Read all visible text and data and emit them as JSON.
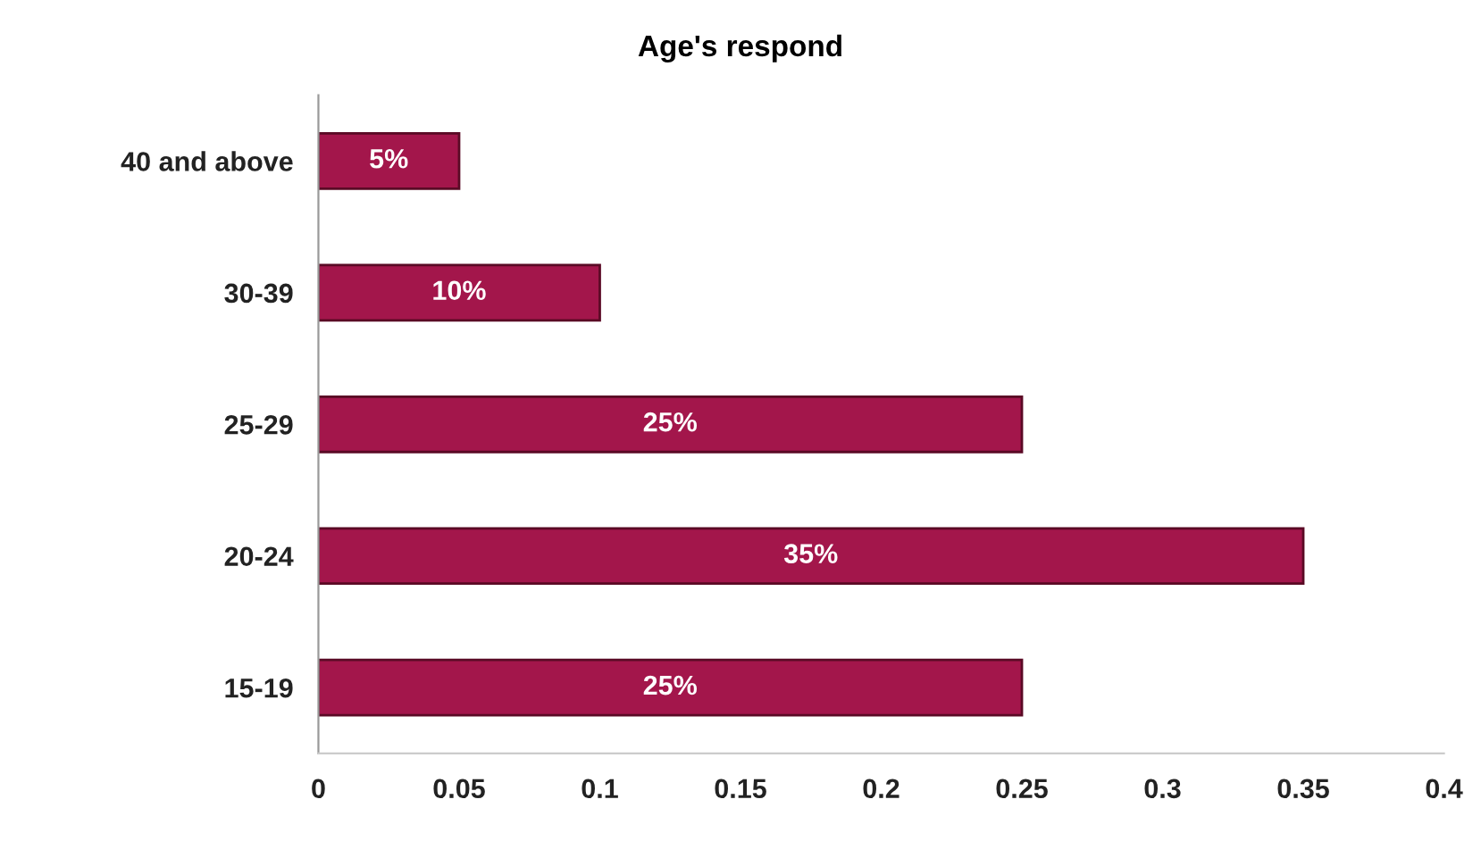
{
  "chart_data": {
    "type": "bar",
    "orientation": "horizontal",
    "title": "Age's respond",
    "categories": [
      "40 and above",
      "30-39",
      "25-29",
      "20-24",
      "15-19"
    ],
    "values": [
      0.05,
      0.1,
      0.25,
      0.35,
      0.25
    ],
    "value_labels": [
      "5%",
      "10%",
      "25%",
      "35%",
      "25%"
    ],
    "color": "#a3164b",
    "xlim": [
      0,
      0.4
    ],
    "xticks": [
      0,
      0.05,
      0.1,
      0.15,
      0.2,
      0.25,
      0.3,
      0.35,
      0.4
    ],
    "grid": false,
    "legend": false
  }
}
